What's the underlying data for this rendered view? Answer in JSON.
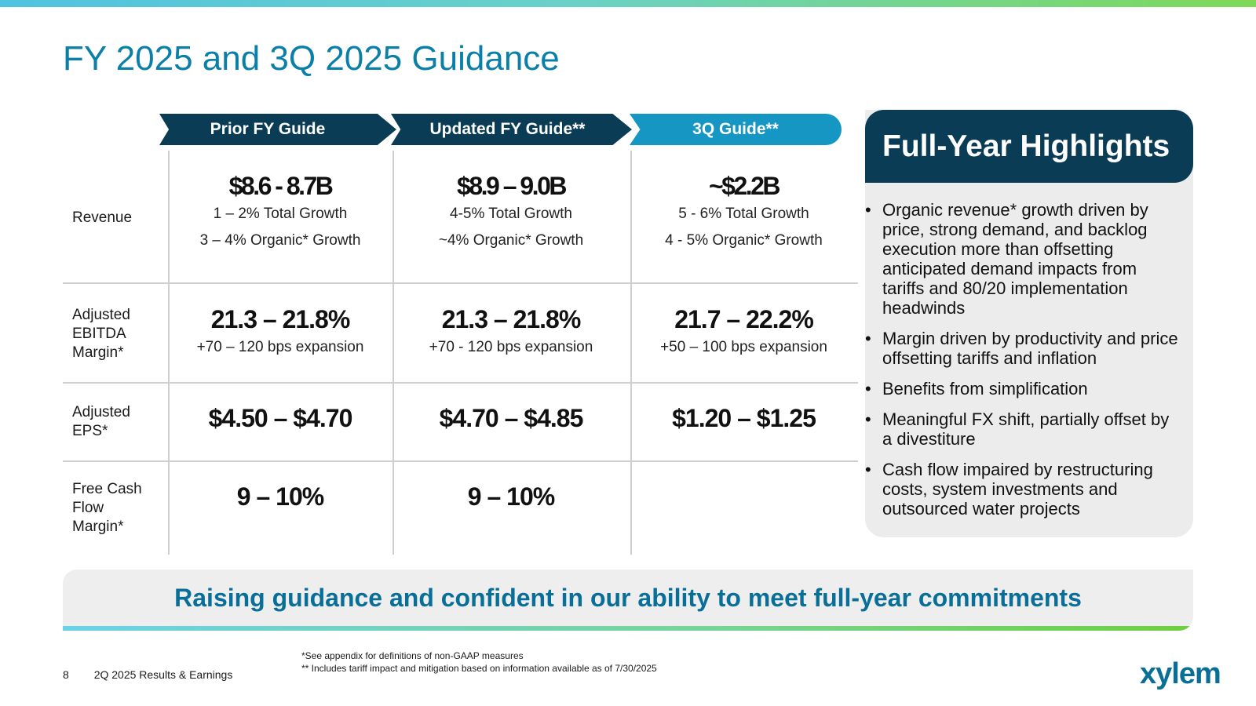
{
  "slide": {
    "title": "FY 2025 and 3Q 2025 Guidance"
  },
  "columns": [
    {
      "label": "Prior FY Guide"
    },
    {
      "label": "Updated FY Guide**"
    },
    {
      "label": "3Q Guide**"
    }
  ],
  "rows": {
    "revenue": {
      "label": "Revenue",
      "cells": [
        {
          "value": "$8.6 - 8.7B",
          "line1": "1 – 2% Total Growth",
          "line2": "3 – 4% Organic* Growth"
        },
        {
          "value": "$8.9 – 9.0B",
          "line1": "4-5% Total Growth",
          "line2": "~4% Organic* Growth"
        },
        {
          "value": "~$2.2B",
          "line1": "5 - 6% Total Growth",
          "line2": "4 - 5% Organic* Growth"
        }
      ]
    },
    "ebitda": {
      "label_lines": [
        "Adjusted",
        "EBITDA",
        "Margin*"
      ],
      "cells": [
        {
          "value": "21.3 – 21.8%",
          "line1": "+70 – 120 bps expansion"
        },
        {
          "value": "21.3 – 21.8%",
          "line1": "+70 - 120 bps expansion"
        },
        {
          "value": "21.7 – 22.2%",
          "line1": "+50 – 100 bps expansion"
        }
      ]
    },
    "eps": {
      "label_lines": [
        "Adjusted",
        "EPS*"
      ],
      "cells": [
        {
          "value": "$4.50 – $4.70"
        },
        {
          "value": "$4.70 – $4.85"
        },
        {
          "value": "$1.20 – $1.25"
        }
      ]
    },
    "fcf": {
      "label_lines": [
        "Free Cash",
        "Flow",
        "Margin*"
      ],
      "cells": [
        {
          "value": "9 – 10%"
        },
        {
          "value": "9 – 10%"
        }
      ]
    }
  },
  "highlights": {
    "title": "Full-Year Highlights",
    "bullet": "•",
    "items": [
      "Organic revenue* growth driven by price, strong demand, and backlog execution more than offsetting anticipated demand impacts from tariffs and 80/20 implementation headwinds",
      "Margin driven by productivity and price offsetting tariffs and inflation",
      "Benefits from simplification",
      "Meaningful FX shift, partially offset by a divestiture",
      "Cash flow impaired by restructuring costs, system investments and outsourced water projects"
    ]
  },
  "banner": {
    "text": "Raising guidance and confident in our ability to meet full-year commitments"
  },
  "footer": {
    "page_number": "8",
    "deck_title": "2Q 2025 Results & Earnings",
    "footnote_1": "*See appendix for definitions of non-GAAP measures",
    "footnote_2": "** Includes tariff impact and mitigation based on information available as of 7/30/2025",
    "logo_text": "xylem"
  },
  "colors": {
    "title": "#0a7fa8",
    "navy": "#0a3d55",
    "teal_header": "#1596c3",
    "banner_text": "#0a6f98"
  }
}
